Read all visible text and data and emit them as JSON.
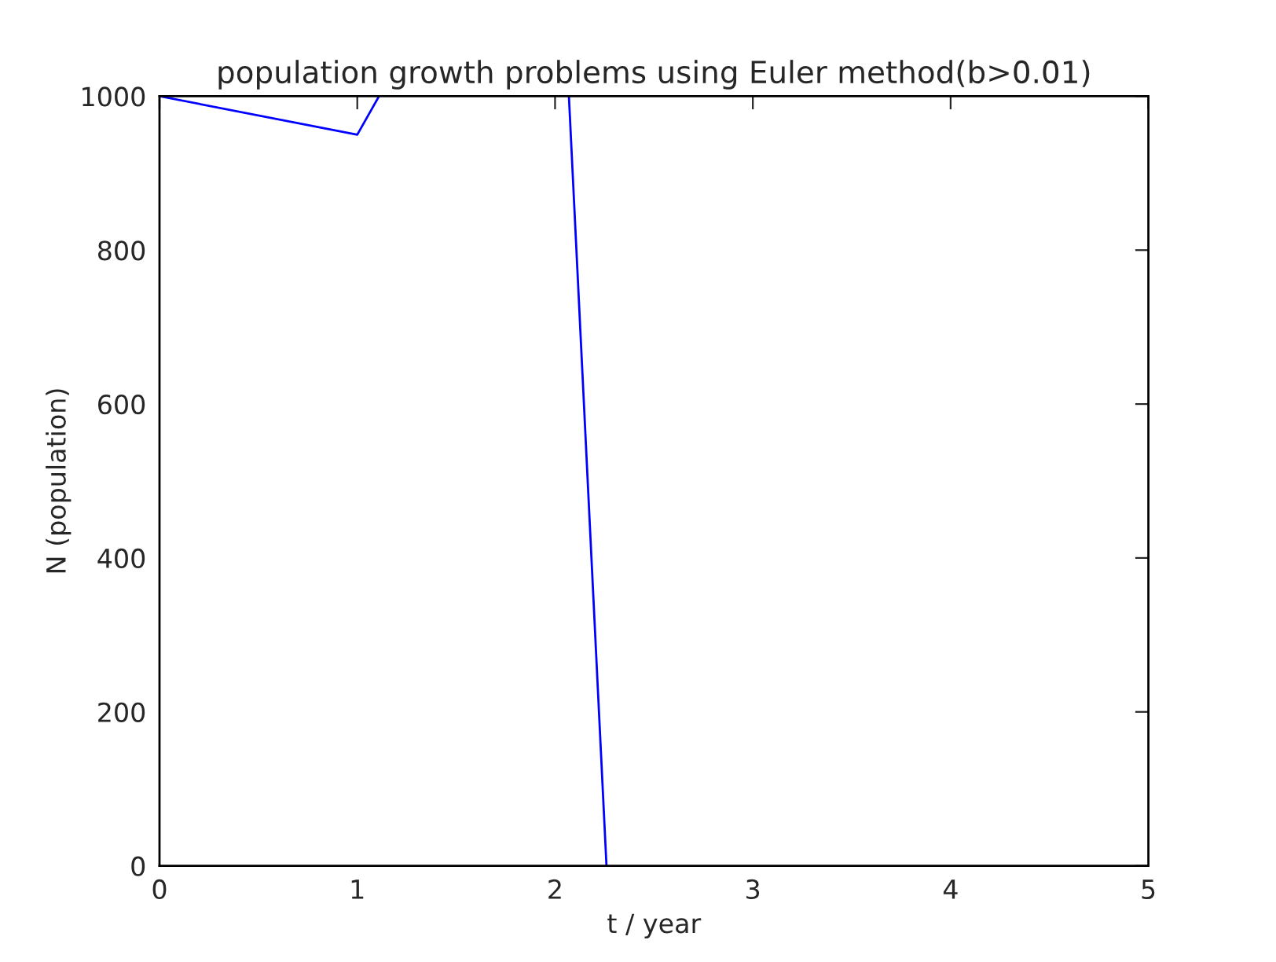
{
  "chart_data": {
    "type": "line",
    "title": "population growth problems using Euler method(b>0.01)",
    "xlabel": "t / year",
    "ylabel": "N (population)",
    "x": [
      0,
      1,
      1.11,
      1.6,
      2.07,
      2.26
    ],
    "series": [
      {
        "color": "#0000ff",
        "values": [
          1000,
          950,
          1000,
          null,
          1000,
          0
        ]
      }
    ],
    "xlim": [
      0,
      5
    ],
    "xticks": [
      0,
      1,
      2,
      3,
      4,
      5
    ],
    "ylim": [
      0,
      1000
    ],
    "yticks": [
      0,
      200,
      400,
      600,
      800,
      1000
    ],
    "grid": false,
    "legend": false,
    "marker": "none",
    "line_style": "solid"
  }
}
